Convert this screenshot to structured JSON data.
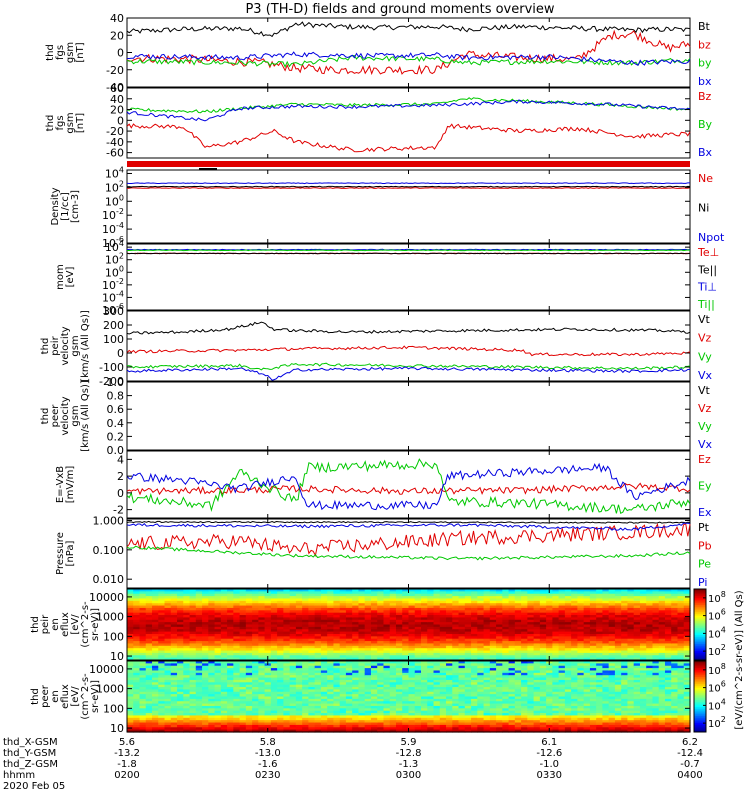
{
  "title": "P3 (TH-D) fields and ground moments overview",
  "colors": {
    "black": "#000000",
    "red": "#e00000",
    "green": "#00c800",
    "blue": "#0000e0",
    "orange": "#e07800"
  },
  "chart_data": [
    {
      "name": "fgs-gsm",
      "type": "line",
      "ylabel": [
        "thd",
        "fgs",
        "gsm",
        "[nT]"
      ],
      "ylim": [
        -40,
        40
      ],
      "ticks": [
        "40",
        "20",
        "0",
        "-20",
        "-40"
      ],
      "tick_values": [
        40,
        20,
        0,
        -20,
        -40
      ],
      "series": [
        {
          "name": "Bt",
          "color": "#000000",
          "x": [
            0,
            0.1,
            0.2,
            0.26,
            0.3,
            0.38,
            0.45,
            0.55,
            0.6,
            0.7,
            0.8,
            0.9,
            0.97,
            1
          ],
          "y": [
            24,
            27,
            28,
            20,
            33,
            30,
            29,
            30,
            27,
            30,
            28,
            26,
            27,
            26
          ],
          "noise": 3
        },
        {
          "name": "bz",
          "color": "#e00000",
          "x": [
            0,
            0.12,
            0.24,
            0.3,
            0.36,
            0.45,
            0.55,
            0.6,
            0.7,
            0.8,
            0.86,
            0.9,
            0.96,
            1
          ],
          "y": [
            -6,
            -8,
            -12,
            -18,
            -20,
            -20,
            -20,
            -2,
            -6,
            -8,
            20,
            22,
            5,
            10
          ],
          "noise": 5
        },
        {
          "name": "by",
          "color": "#00c800",
          "x": [
            0,
            0.2,
            0.3,
            0.4,
            0.55,
            0.6,
            0.75,
            0.9,
            1
          ],
          "y": [
            -10,
            -12,
            -14,
            -6,
            -8,
            -12,
            -10,
            -12,
            -8
          ],
          "noise": 3
        },
        {
          "name": "bx",
          "color": "#0000e0",
          "x": [
            0,
            0.2,
            0.3,
            0.45,
            0.55,
            0.6,
            0.75,
            0.9,
            1
          ],
          "y": [
            -4,
            -6,
            -2,
            -4,
            -3,
            -6,
            -5,
            -12,
            -10
          ],
          "noise": 3
        }
      ]
    },
    {
      "name": "fgs-gsm-zoom",
      "type": "line",
      "ylabel": [
        "thd",
        "fgs",
        "gsm",
        "[nT]"
      ],
      "ylim": [
        -70,
        60
      ],
      "ticks": [
        "60",
        "40",
        "20",
        "0",
        "-20",
        "-40",
        "-60"
      ],
      "tick_values": [
        60,
        40,
        20,
        0,
        -20,
        -40,
        -60
      ],
      "series": [
        {
          "name": "Bz",
          "color": "#e00000",
          "x": [
            0,
            0.1,
            0.14,
            0.2,
            0.26,
            0.3,
            0.4,
            0.55,
            0.57,
            0.7,
            0.8,
            0.9,
            1
          ],
          "y": [
            -10,
            -12,
            -50,
            -40,
            -20,
            -40,
            -55,
            -50,
            -10,
            -20,
            -15,
            -30,
            -25
          ],
          "noise": 4
        },
        {
          "name": "By",
          "color": "#00c800",
          "x": [
            0,
            0.14,
            0.2,
            0.3,
            0.4,
            0.55,
            0.6,
            0.7,
            0.8,
            1
          ],
          "y": [
            20,
            16,
            22,
            30,
            28,
            30,
            40,
            36,
            32,
            20
          ],
          "noise": 3
        },
        {
          "name": "Bx",
          "color": "#0000e0",
          "x": [
            0,
            0.14,
            0.2,
            0.3,
            0.4,
            0.55,
            0.7,
            0.85,
            1
          ],
          "y": [
            15,
            0,
            22,
            26,
            25,
            28,
            35,
            30,
            20
          ],
          "noise": 3
        }
      ]
    },
    {
      "name": "density",
      "type": "line",
      "log": true,
      "ylabel": [
        "Density",
        "[1/cc]",
        "[cm-3]"
      ],
      "ylim": [
        -6,
        4.5
      ],
      "ticks": [
        "10^4",
        "10^2",
        "10^0",
        "10^-2",
        "10^-4",
        "10^-6"
      ],
      "tick_values": [
        4,
        2,
        0,
        -2,
        -4,
        -6
      ],
      "series": [
        {
          "name": "Ne",
          "color": "#e00000",
          "x": [
            0,
            1
          ],
          "y": [
            1.9,
            1.9
          ],
          "noise": 0.05
        },
        {
          "name": "Ni",
          "color": "#000000",
          "x": [
            0,
            1
          ],
          "y": [
            2.1,
            2.1
          ],
          "noise": 0.05
        },
        {
          "name": "Npot",
          "color": "#0000e0",
          "x": [
            0,
            1
          ],
          "y": [
            2.6,
            2.6
          ],
          "noise": 0.05
        }
      ]
    },
    {
      "name": "mom-temp",
      "type": "line",
      "log": true,
      "ylabel": [
        "mom",
        "[eV]"
      ],
      "ylim": [
        -6,
        4.5
      ],
      "ticks": [
        "10^4",
        "10^2",
        "10^0",
        "10^-2",
        "10^-4",
        "10^-6"
      ],
      "tick_values": [
        4,
        2,
        0,
        -2,
        -4,
        -6
      ],
      "series": [
        {
          "name": "Te⊥",
          "color": "#e00000",
          "x": [
            0,
            1
          ],
          "y": [
            3.0,
            3.0
          ],
          "noise": 0.05
        },
        {
          "name": "Te||",
          "color": "#000000",
          "x": [
            0,
            1
          ],
          "y": [
            3.0,
            3.0
          ],
          "noise": 0.05
        },
        {
          "name": "Ti⊥",
          "color": "#0000e0",
          "x": [
            0,
            1
          ],
          "y": [
            3.6,
            3.6
          ],
          "noise": 0.05
        },
        {
          "name": "Ti||",
          "color": "#00c800",
          "x": [
            0,
            1
          ],
          "y": [
            3.5,
            3.5
          ],
          "noise": 0.05
        }
      ]
    },
    {
      "name": "peir-velocity",
      "type": "line",
      "ylabel": [
        "thd",
        "peir",
        "velocity",
        "gsm",
        "[km/s (All Qs)]"
      ],
      "ylim": [
        -200,
        300
      ],
      "ticks": [
        "300",
        "200",
        "100",
        "0",
        "-100",
        "-200"
      ],
      "tick_values": [
        300,
        200,
        100,
        0,
        -100,
        -200
      ],
      "series": [
        {
          "name": "Vt",
          "color": "#000000",
          "x": [
            0,
            0.1,
            0.18,
            0.24,
            0.26,
            0.3,
            0.4,
            0.6,
            0.8,
            0.95,
            1
          ],
          "y": [
            140,
            150,
            170,
            220,
            170,
            160,
            150,
            160,
            170,
            160,
            150
          ],
          "noise": 10
        },
        {
          "name": "Vz",
          "color": "#e00000",
          "x": [
            0,
            0.2,
            0.3,
            0.5,
            0.7,
            0.72,
            0.9,
            1
          ],
          "y": [
            10,
            20,
            30,
            40,
            20,
            -10,
            -10,
            0
          ],
          "noise": 10
        },
        {
          "name": "Vy",
          "color": "#00c800",
          "x": [
            0,
            0.2,
            0.24,
            0.3,
            0.5,
            0.7,
            0.9,
            1
          ],
          "y": [
            -100,
            -90,
            -120,
            -80,
            -90,
            -100,
            -110,
            -100
          ],
          "noise": 10
        },
        {
          "name": "Vx",
          "color": "#0000e0",
          "x": [
            0,
            0.2,
            0.24,
            0.26,
            0.3,
            0.5,
            0.7,
            0.9,
            1
          ],
          "y": [
            -130,
            -110,
            -150,
            -190,
            -120,
            -110,
            -120,
            -130,
            -120
          ],
          "noise": 10
        }
      ]
    },
    {
      "name": "peer-velocity",
      "type": "line",
      "ylabel": [
        "thd",
        "peer",
        "velocity",
        "gsm",
        "[km/s (All Qs)]"
      ],
      "ylim": [
        0,
        1
      ],
      "ticks": [
        "1.0",
        "0.8",
        "0.6",
        "0.4",
        "0.2",
        "0.0"
      ],
      "tick_values": [
        1,
        0.8,
        0.6,
        0.4,
        0.2,
        0
      ],
      "series": [
        {
          "name": "Vt",
          "color": "#000000",
          "x": [],
          "y": [],
          "noise": 0
        },
        {
          "name": "Vz",
          "color": "#e00000",
          "x": [],
          "y": [],
          "noise": 0
        },
        {
          "name": "Vy",
          "color": "#00c800",
          "x": [],
          "y": [],
          "noise": 0
        },
        {
          "name": "Vx",
          "color": "#0000e0",
          "x": [],
          "y": [],
          "noise": 0
        }
      ]
    },
    {
      "name": "e-field",
      "type": "line",
      "ylabel": [
        "E=-VxB",
        "[mV/m]"
      ],
      "ylim": [
        -3,
        5
      ],
      "ticks": [
        "4",
        "2",
        "0",
        "-2"
      ],
      "tick_values": [
        4,
        2,
        0,
        -2
      ],
      "series": [
        {
          "name": "Ez",
          "color": "#e00000",
          "x": [
            0,
            0.2,
            0.3,
            0.5,
            0.7,
            0.9,
            1
          ],
          "y": [
            0.2,
            0.3,
            0.5,
            0.2,
            0.3,
            0.8,
            0.5
          ],
          "noise": 0.4
        },
        {
          "name": "Ey",
          "color": "#00c800",
          "x": [
            0,
            0.15,
            0.2,
            0.3,
            0.32,
            0.55,
            0.57,
            0.7,
            0.9,
            1
          ],
          "y": [
            -0.5,
            -1.5,
            2.5,
            -1,
            3,
            3.5,
            -1,
            -1.2,
            -2,
            -1
          ],
          "noise": 0.6
        },
        {
          "name": "Ex",
          "color": "#0000e0",
          "x": [
            0,
            0.1,
            0.2,
            0.3,
            0.32,
            0.55,
            0.57,
            0.7,
            0.85,
            0.9,
            1
          ],
          "y": [
            2,
            1.5,
            0.5,
            2,
            -1.5,
            -1.5,
            2,
            2.5,
            3,
            -0.5,
            1.5
          ],
          "noise": 0.5
        }
      ]
    },
    {
      "name": "pressure",
      "type": "line",
      "log": true,
      "ylabel": [
        "Pressure",
        "[nPa]"
      ],
      "ylim": [
        -2.3,
        0.05
      ],
      "ticks": [
        "1.000",
        "0.100",
        "0.010"
      ],
      "tick_values": [
        0,
        -1,
        -2
      ],
      "series": [
        {
          "name": "Pt",
          "color": "#000000",
          "x": [
            0,
            0.5,
            1
          ],
          "y": [
            -0.05,
            -0.06,
            -0.08
          ],
          "noise": 0.02
        },
        {
          "name": "Pb",
          "color": "#e00000",
          "x": [
            0,
            0.2,
            0.3,
            0.6,
            0.9,
            1
          ],
          "y": [
            -0.8,
            -0.7,
            -1.0,
            -0.6,
            -0.4,
            -0.3
          ],
          "noise": 0.25
        },
        {
          "name": "Pe",
          "color": "#00c800",
          "x": [
            0,
            0.3,
            0.6,
            0.9,
            1
          ],
          "y": [
            -0.9,
            -1.2,
            -1.3,
            -1.2,
            -1.1
          ],
          "noise": 0.05
        },
        {
          "name": "Pi",
          "color": "#0000e0",
          "x": [
            0,
            0.3,
            0.6,
            0.9,
            1
          ],
          "y": [
            -0.15,
            -0.2,
            -0.15,
            -0.3,
            -0.1
          ],
          "noise": 0.05
        }
      ]
    },
    {
      "name": "peir-en-eflux",
      "type": "heatmap",
      "ylabel": [
        "thd",
        "peir",
        "en",
        "eflux",
        "[eV/",
        "(cm^2-s-",
        "sr-eV)]"
      ],
      "ticks": [
        "10000",
        "1000",
        "100",
        "10"
      ],
      "tick_values": [
        4,
        3,
        2,
        1
      ],
      "ylim": [
        0.8,
        4.4
      ]
    },
    {
      "name": "peer-en-eflux",
      "type": "heatmap",
      "ylabel": [
        "thd",
        "peer",
        "en",
        "eflux",
        "[eV/",
        "(cm^2-s-",
        "sr-eV)]"
      ],
      "ticks": [
        "10000",
        "1000",
        "100",
        "10"
      ],
      "tick_values": [
        4,
        3,
        2,
        1
      ],
      "ylim": [
        0.8,
        4.4
      ]
    }
  ],
  "colorbars": [
    {
      "ticks": [
        "10^8",
        "10^6",
        "10^4",
        "10^2"
      ],
      "tick_values": [
        8,
        6,
        4,
        2
      ],
      "range": [
        1,
        9
      ]
    },
    {
      "ticks": [
        "10^8",
        "10^6",
        "10^4",
        "10^2"
      ],
      "tick_values": [
        8,
        6,
        4,
        2
      ],
      "range": [
        1,
        9
      ]
    }
  ],
  "colorbar_label": "[eV/(cm^2-s-sr-eV)] (All Qs)",
  "x_axis": {
    "tick_positions": [
      0,
      0.25,
      0.5,
      0.75,
      1
    ],
    "rows": [
      {
        "label": "thd_X-GSM",
        "values": [
          "5.6",
          "5.8",
          "5.9",
          "6.1",
          "6.2"
        ]
      },
      {
        "label": "thd_Y-GSM",
        "values": [
          "-13.2",
          "-13.0",
          "-12.8",
          "-12.6",
          "-12.4"
        ]
      },
      {
        "label": "thd_Z-GSM",
        "values": [
          "-1.8",
          "-1.6",
          "-1.3",
          "-1.0",
          "-0.7"
        ]
      },
      {
        "label": "hhmm",
        "values": [
          "0200",
          "0230",
          "0300",
          "0330",
          "0400"
        ]
      }
    ],
    "date": "2020 Feb 05"
  }
}
